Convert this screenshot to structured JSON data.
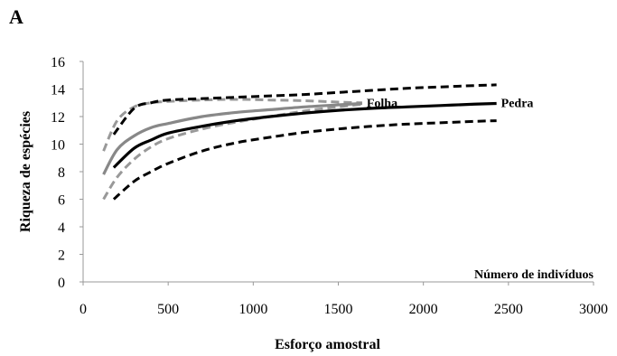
{
  "chart_data": {
    "panel_label": "A",
    "type": "line",
    "xlabel": "Esforço amostral",
    "ylabel": "Riqueza de espécies",
    "annotation": "Número de indivíduos",
    "xlim": [
      0,
      3000
    ],
    "ylim": [
      0,
      16
    ],
    "xticks": [
      0,
      500,
      1000,
      1500,
      2000,
      2500,
      3000
    ],
    "yticks": [
      0,
      2,
      4,
      6,
      8,
      10,
      12,
      14,
      16
    ],
    "grid": false,
    "legend": "none (series labeled directly at line ends)",
    "series": [
      {
        "name": "Folha",
        "style": "solid",
        "color": "#888888",
        "x": [
          120,
          200,
          300,
          400,
          500,
          700,
          900,
          1100,
          1300,
          1500,
          1640
        ],
        "y": [
          7.8,
          9.6,
          10.6,
          11.2,
          11.5,
          12.0,
          12.3,
          12.5,
          12.7,
          12.85,
          12.95
        ]
      },
      {
        "name": "",
        "style": "dashed",
        "color": "#999999",
        "role": "Folha upper interval",
        "x": [
          120,
          200,
          300,
          400,
          500,
          700,
          900,
          1100,
          1300,
          1500,
          1640
        ],
        "y": [
          9.5,
          11.7,
          12.7,
          13.0,
          13.1,
          13.2,
          13.25,
          13.2,
          13.15,
          13.05,
          13.0
        ]
      },
      {
        "name": "",
        "style": "dashed",
        "color": "#999999",
        "role": "Folha lower interval",
        "x": [
          120,
          200,
          300,
          400,
          500,
          700,
          900,
          1100,
          1300,
          1500,
          1640
        ],
        "y": [
          6.0,
          7.6,
          8.9,
          9.8,
          10.4,
          11.1,
          11.6,
          12.0,
          12.4,
          12.7,
          12.9
        ]
      },
      {
        "name": "Pedra",
        "style": "solid",
        "color": "#000000",
        "x": [
          180,
          300,
          400,
          500,
          700,
          900,
          1100,
          1300,
          1500,
          1700,
          1900,
          2100,
          2300,
          2430
        ],
        "y": [
          8.3,
          9.7,
          10.3,
          10.8,
          11.3,
          11.7,
          12.0,
          12.25,
          12.45,
          12.6,
          12.7,
          12.8,
          12.9,
          12.95
        ]
      },
      {
        "name": "",
        "style": "dashed",
        "color": "#000000",
        "role": "Pedra upper interval",
        "x": [
          180,
          300,
          400,
          500,
          700,
          900,
          1100,
          1300,
          1500,
          1700,
          1900,
          2100,
          2300,
          2430
        ],
        "y": [
          10.7,
          12.6,
          13.0,
          13.2,
          13.3,
          13.4,
          13.5,
          13.6,
          13.75,
          13.9,
          14.05,
          14.15,
          14.25,
          14.3
        ]
      },
      {
        "name": "",
        "style": "dashed",
        "color": "#000000",
        "role": "Pedra lower interval",
        "x": [
          180,
          300,
          400,
          500,
          700,
          900,
          1100,
          1300,
          1500,
          1700,
          1900,
          2100,
          2300,
          2430
        ],
        "y": [
          6.0,
          7.3,
          8.0,
          8.6,
          9.5,
          10.1,
          10.5,
          10.85,
          11.1,
          11.3,
          11.45,
          11.55,
          11.65,
          11.7
        ]
      }
    ]
  }
}
